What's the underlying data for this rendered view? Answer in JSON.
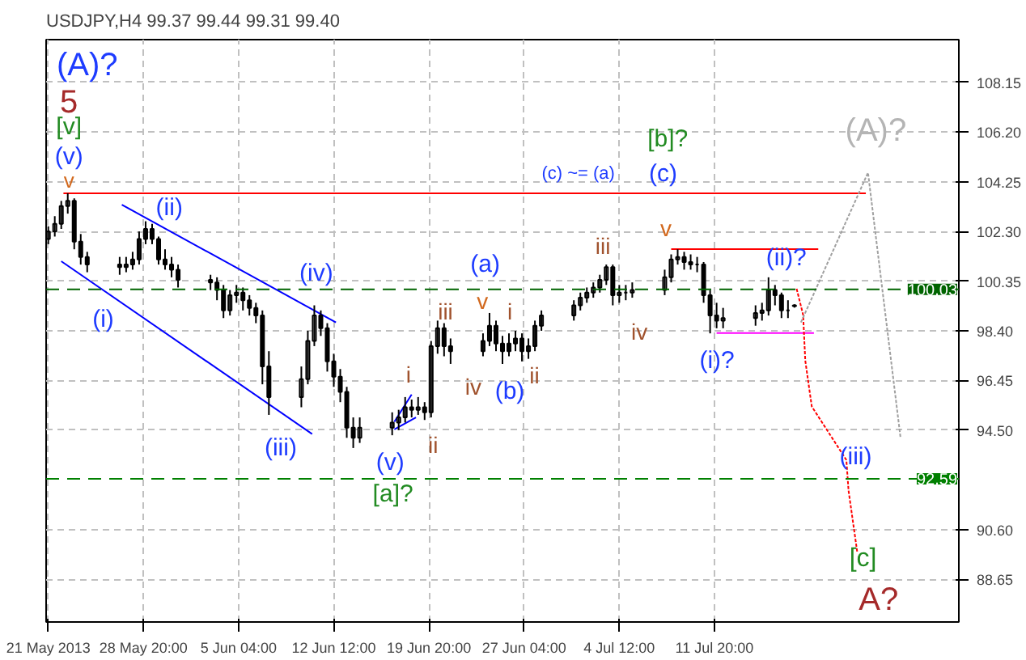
{
  "chart_data": {
    "type": "candlestick",
    "title": "USDJPY,H4  99.37 99.44 99.31 99.40",
    "x": [
      "2013-05-21T12:00",
      "2013-05-22T00:00",
      "2013-05-22T12:00",
      "2013-05-23T00:00",
      "2013-05-23T12:00",
      "2013-05-24T00:00",
      "2013-05-24T12:00",
      "2013-05-27T00:00",
      "2013-05-27T12:00",
      "2013-05-28T00:00",
      "2013-05-28T12:00",
      "2013-05-29T00:00",
      "2013-05-29T12:00",
      "2013-05-30T00:00",
      "2013-05-30T12:00",
      "2013-05-31T00:00",
      "2013-05-31T12:00",
      "2013-06-03T00:00",
      "2013-06-03T12:00",
      "2013-06-04T00:00",
      "2013-06-04T12:00",
      "2013-06-05T00:00",
      "2013-06-05T12:00",
      "2013-06-06T00:00",
      "2013-06-06T12:00",
      "2013-06-07T00:00",
      "2013-06-07T12:00",
      "2013-06-10T00:00",
      "2013-06-10T12:00",
      "2013-06-11T00:00",
      "2013-06-11T12:00",
      "2013-06-12T00:00",
      "2013-06-12T12:00",
      "2013-06-13T00:00",
      "2013-06-13T12:00",
      "2013-06-14T00:00",
      "2013-06-14T12:00",
      "2013-06-17T00:00",
      "2013-06-17T12:00",
      "2013-06-18T00:00",
      "2013-06-18T12:00",
      "2013-06-19T00:00",
      "2013-06-19T12:00",
      "2013-06-20T00:00",
      "2013-06-20T12:00",
      "2013-06-21T00:00",
      "2013-06-21T12:00",
      "2013-06-24T00:00",
      "2013-06-24T12:00",
      "2013-06-25T00:00",
      "2013-06-25T12:00",
      "2013-06-26T00:00",
      "2013-06-26T12:00",
      "2013-06-27T00:00",
      "2013-06-27T12:00",
      "2013-06-28T00:00",
      "2013-06-28T12:00",
      "2013-07-01T00:00",
      "2013-07-01T12:00",
      "2013-07-02T00:00",
      "2013-07-02T12:00",
      "2013-07-03T00:00",
      "2013-07-03T12:00",
      "2013-07-04T00:00",
      "2013-07-04T12:00",
      "2013-07-05T00:00",
      "2013-07-05T12:00",
      "2013-07-08T00:00",
      "2013-07-08T12:00",
      "2013-07-09T00:00",
      "2013-07-09T12:00",
      "2013-07-10T00:00",
      "2013-07-10T12:00",
      "2013-07-11T00:00",
      "2013-07-11T12:00",
      "2013-07-12T00:00",
      "2013-07-12T12:00",
      "2013-07-15T00:00",
      "2013-07-15T12:00",
      "2013-07-16T00:00",
      "2013-07-16T12:00",
      "2013-07-17T00:00",
      "2013-07-17T12:00",
      "2013-07-18T00:00"
    ],
    "ohlc": [
      [
        102.0,
        102.5,
        101.8,
        102.3
      ],
      [
        102.3,
        102.9,
        102.1,
        102.6
      ],
      [
        102.6,
        103.5,
        102.4,
        103.3
      ],
      [
        103.3,
        103.8,
        103.0,
        103.5
      ],
      [
        103.5,
        103.6,
        101.6,
        101.9
      ],
      [
        101.9,
        102.2,
        101.0,
        101.3
      ],
      [
        101.3,
        101.5,
        100.7,
        101.0
      ],
      [
        101.0,
        101.3,
        100.6,
        100.9
      ],
      [
        100.9,
        101.3,
        100.7,
        101.0
      ],
      [
        101.0,
        101.5,
        100.8,
        101.2
      ],
      [
        101.2,
        102.3,
        101.0,
        102.0
      ],
      [
        102.0,
        102.7,
        101.8,
        102.4
      ],
      [
        102.4,
        102.6,
        101.8,
        102.0
      ],
      [
        102.0,
        102.1,
        101.0,
        101.2
      ],
      [
        101.2,
        101.6,
        100.8,
        101.0
      ],
      [
        101.0,
        101.3,
        100.5,
        100.8
      ],
      [
        100.8,
        101.0,
        100.1,
        100.4
      ],
      [
        100.4,
        100.6,
        100.0,
        100.3
      ],
      [
        100.3,
        100.5,
        99.6,
        100.0
      ],
      [
        100.0,
        100.2,
        98.9,
        99.2
      ],
      [
        99.2,
        100.0,
        99.0,
        99.8
      ],
      [
        99.8,
        100.2,
        99.5,
        99.9
      ],
      [
        99.9,
        100.1,
        99.2,
        99.6
      ],
      [
        99.6,
        99.8,
        99.0,
        99.3
      ],
      [
        99.3,
        99.5,
        98.7,
        99.0
      ],
      [
        99.0,
        99.2,
        96.3,
        97.0
      ],
      [
        97.0,
        97.6,
        95.1,
        95.8
      ],
      [
        95.8,
        97.0,
        95.4,
        96.5
      ],
      [
        96.5,
        98.4,
        96.3,
        98.0
      ],
      [
        98.0,
        99.4,
        97.8,
        99.0
      ],
      [
        99.0,
        99.2,
        98.2,
        98.5
      ],
      [
        98.5,
        98.7,
        96.8,
        97.2
      ],
      [
        97.2,
        97.5,
        96.2,
        96.6
      ],
      [
        96.6,
        96.9,
        95.6,
        96.0
      ],
      [
        96.0,
        96.2,
        94.2,
        94.6
      ],
      [
        94.6,
        95.0,
        93.8,
        94.2
      ],
      [
        94.2,
        95.0,
        94.0,
        94.6
      ],
      [
        94.6,
        95.2,
        94.3,
        94.8
      ],
      [
        94.8,
        95.3,
        94.5,
        95.0
      ],
      [
        95.0,
        95.8,
        94.8,
        95.4
      ],
      [
        95.4,
        95.7,
        95.0,
        95.3
      ],
      [
        95.3,
        95.8,
        95.1,
        95.4
      ],
      [
        95.4,
        95.6,
        94.9,
        95.2
      ],
      [
        95.2,
        98.0,
        95.0,
        97.8
      ],
      [
        97.8,
        98.8,
        97.5,
        98.5
      ],
      [
        98.5,
        98.7,
        97.4,
        97.8
      ],
      [
        97.8,
        98.1,
        97.1,
        97.6
      ],
      [
        97.6,
        98.3,
        97.4,
        98.0
      ],
      [
        98.0,
        99.1,
        97.8,
        98.6
      ],
      [
        98.6,
        98.8,
        97.6,
        97.9
      ],
      [
        97.9,
        98.2,
        97.1,
        97.6
      ],
      [
        97.6,
        98.3,
        97.4,
        97.9
      ],
      [
        97.9,
        98.4,
        97.6,
        98.1
      ],
      [
        98.1,
        98.3,
        97.2,
        97.6
      ],
      [
        97.6,
        98.1,
        97.3,
        97.8
      ],
      [
        97.8,
        98.8,
        97.6,
        98.6
      ],
      [
        98.6,
        99.2,
        98.4,
        99.0
      ],
      [
        99.0,
        99.6,
        98.8,
        99.4
      ],
      [
        99.4,
        99.9,
        99.2,
        99.7
      ],
      [
        99.7,
        100.1,
        99.5,
        99.9
      ],
      [
        99.9,
        100.3,
        99.7,
        100.1
      ],
      [
        100.1,
        100.6,
        99.9,
        100.4
      ],
      [
        100.4,
        101.0,
        100.2,
        100.9
      ],
      [
        100.9,
        101.0,
        99.4,
        99.8
      ],
      [
        99.8,
        100.2,
        99.5,
        99.9
      ],
      [
        99.9,
        100.2,
        99.6,
        99.9
      ],
      [
        99.9,
        100.3,
        99.7,
        100.0
      ],
      [
        100.0,
        100.8,
        99.8,
        100.5
      ],
      [
        100.5,
        101.4,
        100.3,
        101.2
      ],
      [
        101.2,
        101.6,
        101.0,
        101.3
      ],
      [
        101.3,
        101.5,
        100.8,
        101.1
      ],
      [
        101.1,
        101.4,
        100.8,
        101.0
      ],
      [
        101.0,
        101.3,
        100.7,
        101.0
      ],
      [
        101.0,
        101.1,
        99.5,
        99.8
      ],
      [
        99.8,
        100.0,
        98.3,
        99.0
      ],
      [
        99.0,
        99.5,
        98.5,
        98.8
      ],
      [
        98.8,
        99.3,
        98.5,
        98.9
      ],
      [
        98.9,
        99.4,
        98.6,
        99.1
      ],
      [
        99.1,
        99.5,
        98.8,
        99.2
      ],
      [
        99.2,
        100.5,
        99.0,
        100.0
      ],
      [
        100.0,
        100.2,
        99.4,
        99.8
      ],
      [
        99.8,
        99.9,
        98.9,
        99.2
      ],
      [
        99.2,
        99.6,
        98.9,
        99.2
      ],
      [
        99.37,
        99.44,
        99.31,
        99.4
      ]
    ],
    "color": "#000000",
    "series": [
      {
        "type": "line",
        "color": "#ff0000",
        "line_style": "solid",
        "x": [
          "2013-05-22T16:00",
          "2013-07-23T12:00"
        ],
        "values": [
          103.8,
          103.8
        ]
      },
      {
        "type": "line",
        "color": "#0000ff",
        "line_style": "solid",
        "x": [
          "2013-05-27T04:00",
          "2013-06-12T16:00"
        ],
        "values": [
          103.35,
          98.73
        ]
      },
      {
        "type": "line",
        "color": "#0000ff",
        "line_style": "solid",
        "x": [
          "2013-05-22T12:00",
          "2013-06-10T20:00"
        ],
        "values": [
          101.13,
          94.35
        ]
      },
      {
        "type": "line",
        "color": "#0000ff",
        "line_style": "solid",
        "x": [
          "2013-06-17T04:00",
          "2013-06-18T12:00"
        ],
        "values": [
          94.83,
          95.9
        ]
      },
      {
        "type": "line",
        "color": "#0000ff",
        "line_style": "solid",
        "x": [
          "2013-06-17T04:00",
          "2013-06-18T20:00"
        ],
        "values": [
          94.53,
          95.0
        ]
      },
      {
        "type": "line",
        "color": "#ff0000",
        "line_style": "solid",
        "x": [
          "2013-07-08T12:00",
          "2013-07-19T20:00"
        ],
        "values": [
          101.61,
          101.61
        ]
      },
      {
        "type": "line",
        "color": "#ff00ff",
        "line_style": "solid",
        "x": [
          "2013-07-12T00:00",
          "2013-07-19T12:00"
        ],
        "values": [
          98.31,
          98.31
        ]
      },
      {
        "type": "line",
        "color": "#ff0000",
        "line_style": "dotted",
        "x": [
          "2013-07-18T04:00",
          "2013-07-18T16:00",
          "2013-07-18T20:00",
          "2013-07-19T08:00",
          "2013-07-22T00:00",
          "2013-07-22T04:00",
          "2013-07-22T20:00"
        ],
        "values": [
          100.05,
          99.03,
          97.23,
          95.43,
          93.33,
          92.13,
          89.73
        ]
      },
      {
        "type": "line",
        "color": "#a0a0a0",
        "line_style": "dotted",
        "x": [
          "2013-07-18T12:00",
          "2013-07-23T16:00",
          "2013-07-26T04:00"
        ],
        "values": [
          98.73,
          104.61,
          94.23
        ]
      }
    ],
    "ref_lines": [
      {
        "axis": "y",
        "value": 100.03,
        "label": "100.03",
        "color": "#006400",
        "line_style": "dashed"
      },
      {
        "axis": "y",
        "value": 92.59,
        "label": "92.59",
        "color": "#008000",
        "line_style": "dashed"
      }
    ],
    "annotations": [
      "(A)?",
      "5",
      "[v]",
      "(v)",
      "v",
      "(i)",
      "(ii)",
      "(iii)",
      "(iv)",
      "(v)",
      "[a]?",
      "i",
      "ii",
      "iii",
      "iv",
      "(a)",
      "v",
      "i",
      "(b)",
      "ii",
      "iii",
      "iv",
      "(c) ~= (a)",
      "[b]?",
      "(c)",
      "v",
      "(ii)?",
      "(i)?",
      "(iii)",
      "(A)?",
      "[c]",
      "A?"
    ],
    "xlim": [
      "2013-05-21T08:00",
      "2013-07-30T16:00"
    ],
    "ylim": [
      86.97,
      109.83
    ],
    "xticks": [
      {
        "value": "2013-05-21T12:00",
        "label": "21 May 2013"
      },
      {
        "value": "2013-05-28T20:00",
        "label": "28 May 20:00"
      },
      {
        "value": "2013-06-05T04:00",
        "label": "5 Jun 04:00"
      },
      {
        "value": "2013-06-12T12:00",
        "label": "12 Jun 12:00"
      },
      {
        "value": "2013-06-19T20:00",
        "label": "19 Jun 20:00"
      },
      {
        "value": "2013-06-27T04:00",
        "label": "27 Jun 04:00"
      },
      {
        "value": "2013-07-04T12:00",
        "label": "4 Jul 12:00"
      },
      {
        "value": "2013-07-11T20:00",
        "label": "11 Jul 20:00"
      }
    ],
    "yticks": [
      {
        "value": 88.65,
        "label": "88.65"
      },
      {
        "value": 90.6,
        "label": "90.60"
      },
      {
        "value": 94.5,
        "label": "94.50"
      },
      {
        "value": 96.45,
        "label": "96.45"
      },
      {
        "value": 98.4,
        "label": "98.40"
      },
      {
        "value": 100.35,
        "label": "100.35"
      },
      {
        "value": 102.3,
        "label": "102.30"
      },
      {
        "value": 104.25,
        "label": "104.25"
      },
      {
        "value": 106.2,
        "label": "106.20"
      },
      {
        "value": 108.15,
        "label": "108.15"
      }
    ],
    "grid": true
  }
}
